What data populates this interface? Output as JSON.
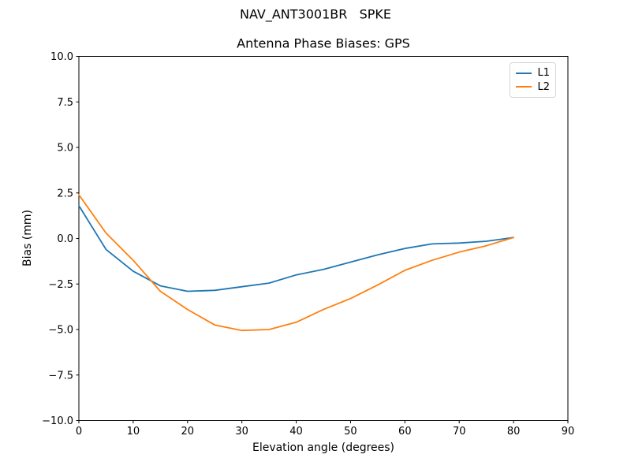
{
  "suptitle": "NAV_ANT3001BR   SPKE",
  "chart_data": {
    "type": "line",
    "title": "Antenna Phase Biases: GPS",
    "xlabel": "Elevation angle (degrees)",
    "ylabel": "Bias (mm)",
    "xlim": [
      0,
      90
    ],
    "ylim": [
      -10,
      10
    ],
    "x_ticks": [
      0,
      10,
      20,
      30,
      40,
      50,
      60,
      70,
      80,
      90
    ],
    "y_ticks": [
      10.0,
      7.5,
      5.0,
      2.5,
      0.0,
      -2.5,
      -5.0,
      -7.5,
      -10.0
    ],
    "grid": false,
    "legend_location": "upper right",
    "x": [
      0,
      5,
      10,
      15,
      20,
      25,
      30,
      35,
      40,
      45,
      50,
      55,
      60,
      65,
      70,
      75,
      80
    ],
    "series": [
      {
        "name": "L1",
        "color": "#1f77b4",
        "values": [
          1.8,
          -0.6,
          -1.8,
          -2.6,
          -2.9,
          -2.85,
          -2.65,
          -2.45,
          -2.0,
          -1.7,
          -1.3,
          -0.9,
          -0.55,
          -0.3,
          -0.25,
          -0.15,
          0.05
        ]
      },
      {
        "name": "L2",
        "color": "#ff7f0e",
        "values": [
          2.4,
          0.3,
          -1.2,
          -2.9,
          -3.9,
          -4.75,
          -5.05,
          -5.0,
          -4.6,
          -3.9,
          -3.3,
          -2.55,
          -1.75,
          -1.2,
          -0.75,
          -0.4,
          0.05
        ]
      }
    ]
  }
}
